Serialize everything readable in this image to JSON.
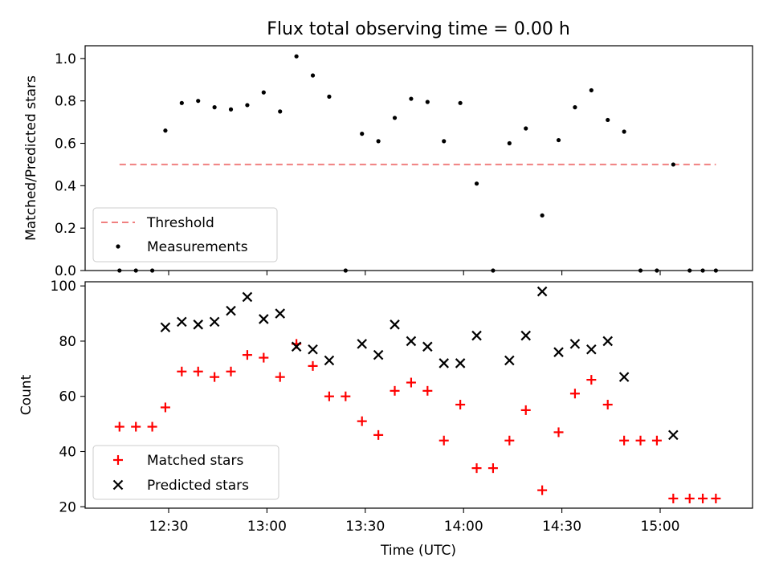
{
  "figure": {
    "title": "Flux total observing time = 0.00 h",
    "xlabel": "Time (UTC)"
  },
  "chart_data": [
    {
      "type": "scatter",
      "ylabel": "Matched/Predicted stars",
      "ylim": [
        0.0,
        1.06
      ],
      "yticks": [
        0.0,
        0.2,
        0.4,
        0.6,
        0.8,
        1.0
      ],
      "ytick_labels": [
        "0.0",
        "0.2",
        "0.4",
        "0.6",
        "0.8",
        "1.0"
      ],
      "threshold": {
        "name": "Threshold",
        "value": 0.5,
        "x_range": [
          "12:15",
          "15:17"
        ],
        "color": "#f08080"
      },
      "series": [
        {
          "name": "Measurements",
          "color": "#000000",
          "x": [
            "12:15",
            "12:20",
            "12:25",
            "12:29",
            "12:34",
            "12:39",
            "12:44",
            "12:49",
            "12:54",
            "12:59",
            "13:04",
            "13:09",
            "13:14",
            "13:19",
            "13:24",
            "13:29",
            "13:34",
            "13:39",
            "13:44",
            "13:49",
            "13:54",
            "13:59",
            "14:04",
            "14:09",
            "14:14",
            "14:19",
            "14:24",
            "14:29",
            "14:34",
            "14:39",
            "14:44",
            "14:49",
            "14:54",
            "14:59",
            "15:04",
            "15:09",
            "15:13",
            "15:17"
          ],
          "y": [
            0.0,
            0.0,
            0.0,
            0.66,
            0.79,
            0.8,
            0.77,
            0.76,
            0.78,
            0.84,
            0.75,
            1.01,
            0.92,
            0.82,
            0.0,
            0.645,
            0.61,
            0.72,
            0.81,
            0.795,
            0.61,
            0.79,
            0.41,
            0.0,
            0.6,
            0.67,
            0.26,
            0.615,
            0.77,
            0.85,
            0.71,
            0.655,
            0.0,
            0.0,
            0.5,
            0.0,
            0.0,
            0.0
          ]
        }
      ],
      "legend": "lower-left"
    },
    {
      "type": "scatter",
      "ylabel": "Count",
      "ylim": [
        19.5,
        101.5
      ],
      "yticks": [
        20,
        40,
        60,
        80,
        100
      ],
      "ytick_labels": [
        "20",
        "40",
        "60",
        "80",
        "100"
      ],
      "xticks": [
        "12:30",
        "13:00",
        "13:30",
        "14:00",
        "14:30",
        "15:00"
      ],
      "xtick_labels": [
        "12:30",
        "13:00",
        "13:30",
        "14:00",
        "14:30",
        "15:00"
      ],
      "series": [
        {
          "name": "Matched stars",
          "color": "#ff0000",
          "marker": "plus",
          "x": [
            "12:15",
            "12:20",
            "12:25",
            "12:29",
            "12:34",
            "12:39",
            "12:44",
            "12:49",
            "12:54",
            "12:59",
            "13:04",
            "13:09",
            "13:14",
            "13:19",
            "13:24",
            "13:29",
            "13:34",
            "13:39",
            "13:44",
            "13:49",
            "13:54",
            "13:59",
            "14:04",
            "14:09",
            "14:14",
            "14:19",
            "14:24",
            "14:29",
            "14:34",
            "14:39",
            "14:44",
            "14:49",
            "14:54",
            "14:59",
            "15:04",
            "15:09",
            "15:13",
            "15:17"
          ],
          "y": [
            49,
            49,
            49,
            56,
            69,
            69,
            67,
            69,
            75,
            74,
            67,
            79,
            71,
            60,
            60,
            51,
            46,
            62,
            65,
            62,
            44,
            57,
            34,
            34,
            44,
            55,
            26,
            47,
            61,
            66,
            57,
            44,
            44,
            44,
            23,
            23,
            23,
            23
          ]
        },
        {
          "name": "Predicted stars",
          "color": "#000000",
          "marker": "x",
          "x": [
            "12:29",
            "12:34",
            "12:39",
            "12:44",
            "12:49",
            "12:54",
            "12:59",
            "13:04",
            "13:09",
            "13:14",
            "13:19",
            "13:29",
            "13:34",
            "13:39",
            "13:44",
            "13:49",
            "13:54",
            "13:59",
            "14:04",
            "14:14",
            "14:19",
            "14:24",
            "14:29",
            "14:34",
            "14:39",
            "14:44",
            "14:49",
            "15:04"
          ],
          "y": [
            85,
            87,
            86,
            87,
            91,
            96,
            88,
            90,
            78,
            77,
            73,
            79,
            75,
            86,
            80,
            78,
            72,
            72,
            82,
            73,
            82,
            98,
            76,
            79,
            77,
            80,
            67,
            46
          ]
        }
      ],
      "legend": "lower-left"
    }
  ]
}
